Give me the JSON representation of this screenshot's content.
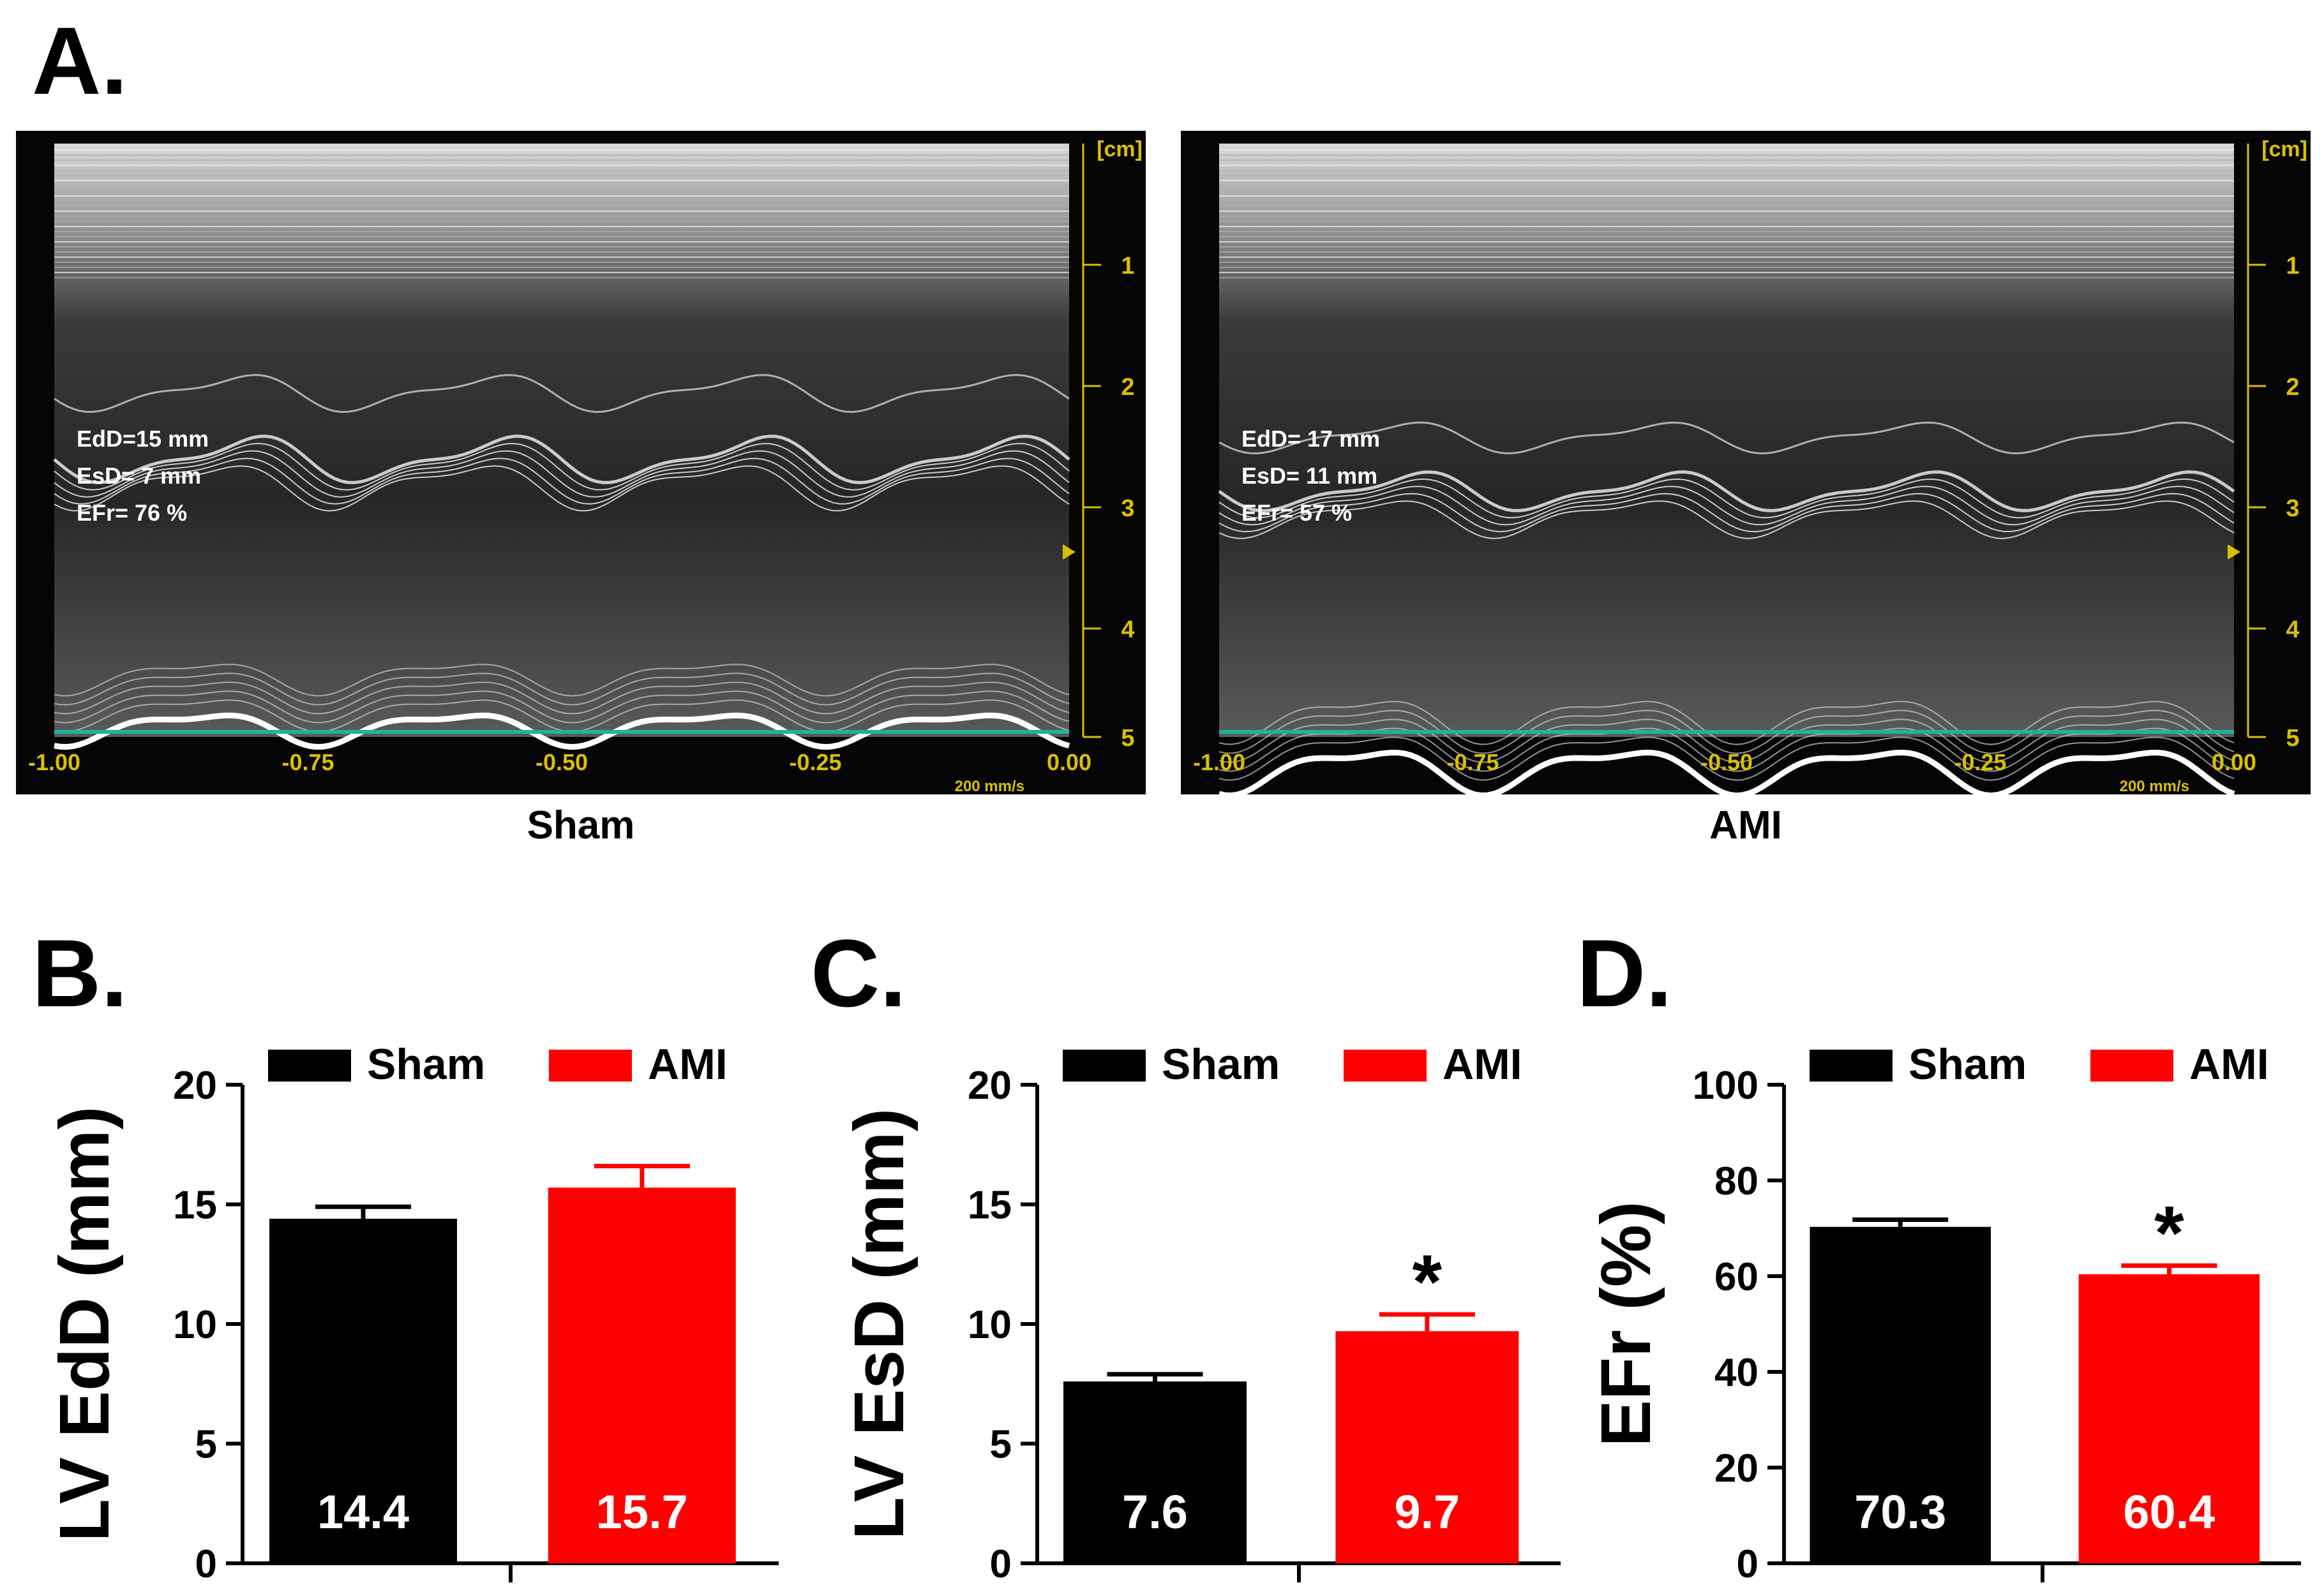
{
  "panels": {
    "a": "A.",
    "b": "B.",
    "c": "C.",
    "d": "D."
  },
  "echo": [
    {
      "caption": "Sham",
      "axis_unit": "[cm]",
      "depth_ticks": [
        "1",
        "2",
        "3",
        "4",
        "5"
      ],
      "time_ticks": [
        "-1.00",
        "-0.75",
        "-0.50",
        "-0.25",
        "0.00"
      ],
      "sweep_speed": "200 mm/s",
      "measurements": [
        "EdD=15 mm",
        "EsD= 7 mm",
        "EFr= 76 %"
      ]
    },
    {
      "caption": "AMI",
      "axis_unit": "[cm]",
      "depth_ticks": [
        "1",
        "2",
        "3",
        "4",
        "5"
      ],
      "time_ticks": [
        "-1.00",
        "-0.75",
        "-0.50",
        "-0.25",
        "0.00"
      ],
      "sweep_speed": "200 mm/s",
      "measurements": [
        "EdD= 17 mm",
        "EsD= 11 mm",
        "EFr=  57 %"
      ]
    }
  ],
  "colors": {
    "sham": "#000000",
    "ami": "#ff0000",
    "echo_baseline": "#19b5a0",
    "echo_ticks": "#d8c000"
  },
  "chart_data": [
    {
      "type": "bar",
      "panel": "B.",
      "categories": [
        "Sham",
        "AMI"
      ],
      "values": [
        14.4,
        15.7
      ],
      "errors": [
        0.5,
        0.9
      ],
      "value_labels": [
        "14.4",
        "15.7"
      ],
      "ylabel": "LV EdD (mm)",
      "ylim": [
        0,
        20
      ],
      "yticks": [
        0,
        5,
        10,
        15,
        20
      ],
      "significance": [
        "",
        ""
      ],
      "legend": [
        "Sham",
        "AMI"
      ],
      "legend_position": "top"
    },
    {
      "type": "bar",
      "panel": "C.",
      "categories": [
        "Sham",
        "AMI"
      ],
      "values": [
        7.6,
        9.7
      ],
      "errors": [
        0.3,
        0.7
      ],
      "value_labels": [
        "7.6",
        "9.7"
      ],
      "ylabel": "LV EsD (mm)",
      "ylim": [
        0,
        20
      ],
      "yticks": [
        0,
        5,
        10,
        15,
        20
      ],
      "significance": [
        "",
        "*"
      ],
      "legend": [
        "Sham",
        "AMI"
      ],
      "legend_position": "top"
    },
    {
      "type": "bar",
      "panel": "D.",
      "categories": [
        "Sham",
        "AMI"
      ],
      "values": [
        70.3,
        60.4
      ],
      "errors": [
        1.5,
        1.8
      ],
      "value_labels": [
        "70.3",
        "60.4"
      ],
      "ylabel": "EFr (%)",
      "ylim": [
        0,
        100
      ],
      "yticks": [
        0,
        20,
        40,
        60,
        80,
        100
      ],
      "significance": [
        "",
        "*"
      ],
      "legend": [
        "Sham",
        "AMI"
      ],
      "legend_position": "top"
    }
  ]
}
